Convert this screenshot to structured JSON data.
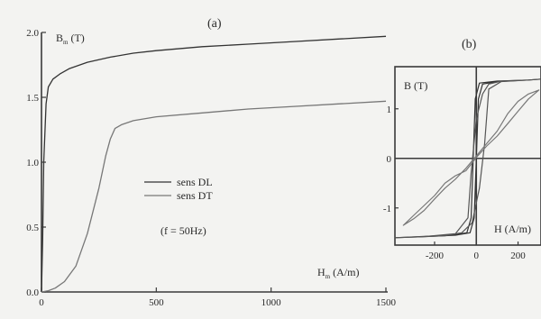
{
  "chart_data": [
    {
      "panel_label": "(a)",
      "type": "line",
      "xlabel": "H",
      "xlabel_sub": "m",
      "xlabel_unit": " (A/m)",
      "ylabel": "B",
      "ylabel_sub": "m",
      "ylabel_unit": " (T)",
      "xlim": [
        0,
        1500
      ],
      "ylim": [
        0,
        2.0
      ],
      "x_ticks": [
        0,
        500,
        1000,
        1500
      ],
      "x_tick_labels": [
        "0",
        "500",
        "1000",
        "1500"
      ],
      "y_ticks": [
        0,
        0.5,
        1.0,
        1.5,
        2.0
      ],
      "y_tick_labels": [
        "0.0",
        "0.5",
        "1.0",
        "1.5",
        "2.0"
      ],
      "annotation": "(f = 50Hz)",
      "legend_position": "center",
      "series": [
        {
          "name": "sens DL",
          "color": "#333333",
          "points": [
            [
              0,
              0
            ],
            [
              5,
              0.4
            ],
            [
              10,
              1.0
            ],
            [
              20,
              1.45
            ],
            [
              30,
              1.58
            ],
            [
              50,
              1.64
            ],
            [
              80,
              1.68
            ],
            [
              120,
              1.72
            ],
            [
              200,
              1.77
            ],
            [
              300,
              1.81
            ],
            [
              400,
              1.84
            ],
            [
              500,
              1.86
            ],
            [
              700,
              1.89
            ],
            [
              900,
              1.91
            ],
            [
              1100,
              1.93
            ],
            [
              1300,
              1.95
            ],
            [
              1500,
              1.97
            ]
          ]
        },
        {
          "name": "sens DT",
          "color": "#777777",
          "points": [
            [
              0,
              0
            ],
            [
              30,
              0.01
            ],
            [
              60,
              0.03
            ],
            [
              100,
              0.08
            ],
            [
              150,
              0.2
            ],
            [
              200,
              0.45
            ],
            [
              250,
              0.8
            ],
            [
              280,
              1.05
            ],
            [
              300,
              1.18
            ],
            [
              320,
              1.26
            ],
            [
              350,
              1.29
            ],
            [
              400,
              1.32
            ],
            [
              500,
              1.35
            ],
            [
              700,
              1.38
            ],
            [
              900,
              1.41
            ],
            [
              1100,
              1.43
            ],
            [
              1300,
              1.45
            ],
            [
              1500,
              1.47
            ]
          ]
        }
      ]
    },
    {
      "panel_label": "(b)",
      "type": "line",
      "xlabel": "H (A/m)",
      "ylabel": "B (T)",
      "xlim": [
        -390,
        310
      ],
      "ylim": [
        -1.75,
        1.85
      ],
      "x_ticks": [
        -200,
        0,
        200
      ],
      "x_tick_labels": [
        "-200",
        "0",
        "200"
      ],
      "y_ticks": [
        1,
        0,
        -1
      ],
      "y_tick_labels": [
        "1",
        "0",
        "-1"
      ],
      "series": [
        {
          "name": "",
          "color": "#333333",
          "points": [
            [
              -390,
              -1.6
            ],
            [
              -250,
              -1.58
            ],
            [
              -100,
              -1.55
            ],
            [
              -30,
              -1.5
            ],
            [
              -10,
              -1.2
            ],
            [
              0,
              0
            ],
            [
              10,
              1.2
            ],
            [
              30,
              1.5
            ],
            [
              100,
              1.55
            ],
            [
              250,
              1.58
            ],
            [
              310,
              1.6
            ],
            [
              250,
              1.58
            ],
            [
              100,
              1.56
            ],
            [
              15,
              1.52
            ],
            [
              -5,
              1.2
            ],
            [
              -15,
              0
            ],
            [
              -25,
              -1.2
            ],
            [
              -45,
              -1.5
            ],
            [
              -120,
              -1.55
            ],
            [
              -390,
              -1.6
            ]
          ]
        },
        {
          "name": "",
          "color": "#555555",
          "points": [
            [
              -390,
              -1.6
            ],
            [
              -250,
              -1.58
            ],
            [
              -100,
              -1.52
            ],
            [
              -40,
              -1.2
            ],
            [
              -25,
              -0.3
            ],
            [
              0,
              0.8
            ],
            [
              30,
              1.3
            ],
            [
              60,
              1.5
            ],
            [
              120,
              1.56
            ],
            [
              250,
              1.58
            ],
            [
              310,
              1.6
            ],
            [
              250,
              1.58
            ],
            [
              120,
              1.55
            ],
            [
              60,
              1.4
            ],
            [
              40,
              0.3
            ],
            [
              15,
              -0.6
            ],
            [
              -20,
              -1.3
            ],
            [
              -70,
              -1.5
            ],
            [
              -150,
              -1.56
            ],
            [
              -390,
              -1.6
            ]
          ]
        },
        {
          "name": "",
          "color": "#777777",
          "points": [
            [
              -350,
              -1.35
            ],
            [
              -300,
              -1.15
            ],
            [
              -250,
              -0.95
            ],
            [
              -200,
              -0.75
            ],
            [
              -150,
              -0.5
            ],
            [
              -100,
              -0.35
            ],
            [
              -50,
              -0.25
            ],
            [
              0,
              0.02
            ],
            [
              50,
              0.25
            ],
            [
              100,
              0.45
            ],
            [
              150,
              0.7
            ],
            [
              200,
              0.95
            ],
            [
              250,
              1.2
            ],
            [
              300,
              1.38
            ],
            [
              250,
              1.3
            ],
            [
              200,
              1.15
            ],
            [
              150,
              0.9
            ],
            [
              100,
              0.55
            ],
            [
              50,
              0.3
            ],
            [
              0,
              0.05
            ],
            [
              -50,
              -0.2
            ],
            [
              -100,
              -0.42
            ],
            [
              -150,
              -0.6
            ],
            [
              -200,
              -0.82
            ],
            [
              -250,
              -1.05
            ],
            [
              -300,
              -1.22
            ],
            [
              -350,
              -1.35
            ]
          ]
        }
      ]
    }
  ]
}
